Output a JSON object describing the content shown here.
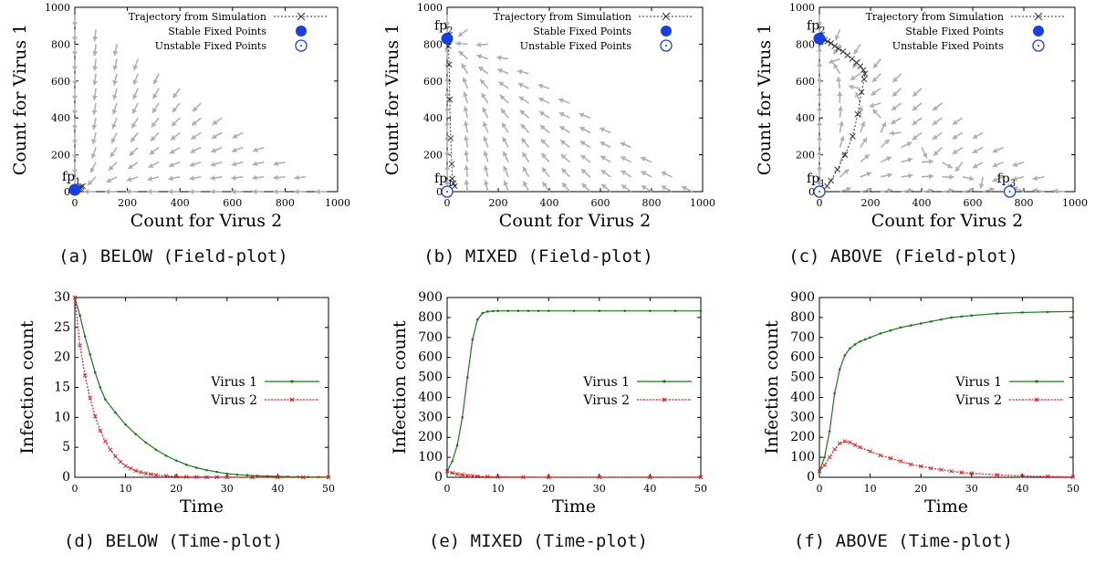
{
  "captions": [
    "(a) BELOW (Field-plot)",
    "(b) MIXED (Field-plot)",
    "(c) ABOVE (Field-plot)",
    "(d) BELOW (Time-plot)",
    "(e) MIXED (Time-plot)",
    "(f) ABOVE (Time-plot)"
  ],
  "colors": {
    "virus1": "#1a7a1a",
    "virus2": "#e8161b",
    "stable": "#1a3fe0",
    "arrow": "#b0b0b0",
    "trajectory": "#333333"
  },
  "chart_data": [
    {
      "type": "scatter",
      "subtype": "vector-field",
      "xlabel": "Count for Virus 2",
      "ylabel": "Count for Virus 1",
      "xlim": [
        0,
        1000
      ],
      "ylim": [
        0,
        1000
      ],
      "xticks": [
        0,
        200,
        400,
        600,
        800,
        1000
      ],
      "yticks": [
        0,
        200,
        400,
        600,
        800,
        1000
      ],
      "legend": [
        "Trajectory from Simulation",
        "Stable Fixed Points",
        "Unstable Fixed Points"
      ],
      "legend_position": "top-right",
      "field": "below",
      "stable_points": [
        {
          "name": "fp",
          "sub": "1",
          "x": 0,
          "y": 10
        }
      ],
      "unstable_points": [],
      "trajectory": {
        "x": [
          30,
          25,
          20,
          15,
          10,
          6,
          3
        ],
        "y": [
          30,
          26,
          22,
          18,
          14,
          11,
          9
        ]
      }
    },
    {
      "type": "scatter",
      "subtype": "vector-field",
      "xlabel": "Count for Virus 2",
      "ylabel": "Count for Virus 1",
      "xlim": [
        0,
        1000
      ],
      "ylim": [
        0,
        1000
      ],
      "xticks": [
        0,
        200,
        400,
        600,
        800,
        1000
      ],
      "yticks": [
        0,
        200,
        400,
        600,
        800,
        1000
      ],
      "legend": [
        "Trajectory from Simulation",
        "Stable Fixed Points",
        "Unstable Fixed Points"
      ],
      "legend_position": "top-right",
      "field": "mixed",
      "stable_points": [
        {
          "name": "fp",
          "sub": "2",
          "x": 0,
          "y": 830
        }
      ],
      "unstable_points": [
        {
          "name": "fp",
          "sub": "1",
          "x": 0,
          "y": 0
        }
      ],
      "trajectory": {
        "x": [
          30,
          25,
          20,
          18,
          14,
          10,
          8,
          5,
          3,
          1
        ],
        "y": [
          30,
          45,
          70,
          150,
          290,
          500,
          690,
          790,
          820,
          830
        ]
      }
    },
    {
      "type": "scatter",
      "subtype": "vector-field",
      "xlabel": "Count for Virus 2",
      "ylabel": "Count for Virus 1",
      "xlim": [
        0,
        1000
      ],
      "ylim": [
        0,
        1000
      ],
      "xticks": [
        0,
        200,
        400,
        600,
        800,
        1000
      ],
      "yticks": [
        0,
        200,
        400,
        600,
        800,
        1000
      ],
      "legend": [
        "Trajectory from Simulation",
        "Stable Fixed Points",
        "Unstable Fixed Points"
      ],
      "legend_position": "top-right",
      "field": "above",
      "stable_points": [
        {
          "name": "fp",
          "sub": "2",
          "x": 0,
          "y": 830
        }
      ],
      "unstable_points": [
        {
          "name": "fp",
          "sub": "1",
          "x": 0,
          "y": 0
        },
        {
          "name": "fp",
          "sub": "3",
          "x": 745,
          "y": 0
        }
      ],
      "trajectory": {
        "x": [
          30,
          45,
          70,
          100,
          130,
          150,
          165,
          175,
          178,
          172,
          160,
          145,
          128,
          110,
          92,
          75,
          60,
          45,
          32,
          20,
          10,
          4
        ],
        "y": [
          30,
          60,
          120,
          200,
          300,
          420,
          540,
          610,
          640,
          660,
          680,
          700,
          720,
          740,
          760,
          775,
          790,
          805,
          815,
          823,
          828,
          830
        ]
      }
    },
    {
      "type": "line",
      "xlabel": "Time",
      "ylabel": "Infection count",
      "xlim": [
        0,
        50
      ],
      "ylim": [
        0,
        30
      ],
      "xticks": [
        0,
        10,
        20,
        30,
        40,
        50
      ],
      "yticks": [
        0,
        5,
        10,
        15,
        20,
        25,
        30
      ],
      "legend_position": "right",
      "series": [
        {
          "name": "Virus 1",
          "x": [
            0,
            1,
            2,
            3,
            4,
            5,
            6,
            8,
            10,
            12,
            14,
            16,
            18,
            20,
            22,
            24,
            26,
            28,
            30,
            32,
            34,
            36,
            38,
            40,
            42,
            44,
            46,
            48,
            50
          ],
          "values": [
            30,
            27,
            23.5,
            20.5,
            17.5,
            15,
            13,
            10.8,
            8.8,
            7.2,
            5.8,
            4.6,
            3.6,
            2.8,
            2.1,
            1.6,
            1.2,
            0.9,
            0.6,
            0.45,
            0.35,
            0.25,
            0.2,
            0.15,
            0.1,
            0.08,
            0.05,
            0.04,
            0.03
          ]
        },
        {
          "name": "Virus 2",
          "x": [
            0,
            1,
            2,
            3,
            4,
            5,
            6,
            7,
            8,
            9,
            10,
            11,
            12,
            13,
            14,
            15,
            16,
            18,
            20,
            22,
            24,
            26,
            28,
            30,
            35,
            40,
            45,
            50
          ],
          "values": [
            30,
            22,
            17,
            13.2,
            10.2,
            7.8,
            6,
            4.6,
            3.5,
            2.6,
            1.9,
            1.5,
            1.1,
            0.85,
            0.65,
            0.5,
            0.38,
            0.22,
            0.13,
            0.08,
            0.05,
            0.03,
            0.02,
            0.01,
            0,
            0,
            0,
            0
          ]
        }
      ]
    },
    {
      "type": "line",
      "xlabel": "Time",
      "ylabel": "Infection count",
      "xlim": [
        0,
        50
      ],
      "ylim": [
        0,
        900
      ],
      "xticks": [
        0,
        10,
        20,
        30,
        40,
        50
      ],
      "yticks": [
        0,
        100,
        200,
        300,
        400,
        500,
        600,
        700,
        800,
        900
      ],
      "legend_position": "right",
      "series": [
        {
          "name": "Virus 1",
          "x": [
            0,
            1,
            2,
            3,
            4,
            5,
            6,
            7,
            8,
            9,
            10,
            12,
            14,
            16,
            18,
            20,
            25,
            30,
            35,
            40,
            45,
            50
          ],
          "values": [
            30,
            80,
            160,
            300,
            500,
            690,
            790,
            822,
            830,
            832,
            833,
            833,
            833,
            833,
            833,
            833,
            833,
            833,
            833,
            833,
            833,
            833
          ]
        },
        {
          "name": "Virus 2",
          "x": [
            0,
            1,
            2,
            3,
            4,
            5,
            6,
            8,
            10,
            15,
            20,
            30,
            40,
            50
          ],
          "values": [
            30,
            22,
            16,
            12,
            9,
            7,
            5,
            3,
            2,
            1,
            0,
            0,
            0,
            0
          ]
        }
      ]
    },
    {
      "type": "line",
      "xlabel": "Time",
      "ylabel": "Infection count",
      "xlim": [
        0,
        50
      ],
      "ylim": [
        0,
        900
      ],
      "xticks": [
        0,
        10,
        20,
        30,
        40,
        50
      ],
      "yticks": [
        0,
        100,
        200,
        300,
        400,
        500,
        600,
        700,
        800,
        900
      ],
      "legend_position": "right",
      "series": [
        {
          "name": "Virus 1",
          "x": [
            0,
            1,
            2,
            3,
            4,
            5,
            6,
            7,
            8,
            9,
            10,
            12,
            14,
            16,
            18,
            20,
            22,
            24,
            26,
            28,
            30,
            35,
            40,
            45,
            50
          ],
          "values": [
            30,
            100,
            230,
            420,
            540,
            610,
            645,
            665,
            680,
            690,
            700,
            720,
            735,
            750,
            760,
            770,
            780,
            790,
            800,
            805,
            810,
            820,
            825,
            828,
            830
          ]
        },
        {
          "name": "Virus 2",
          "x": [
            0,
            1,
            2,
            3,
            4,
            5,
            6,
            7,
            8,
            10,
            12,
            14,
            16,
            18,
            20,
            22,
            24,
            26,
            28,
            30,
            35,
            40,
            45,
            50
          ],
          "values": [
            30,
            60,
            100,
            140,
            170,
            180,
            175,
            162,
            150,
            130,
            110,
            95,
            80,
            65,
            55,
            45,
            38,
            30,
            24,
            20,
            12,
            7,
            4,
            2
          ]
        }
      ]
    }
  ]
}
